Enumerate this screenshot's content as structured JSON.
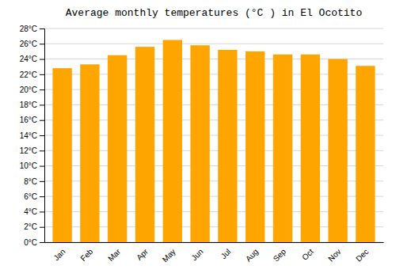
{
  "chart_data": {
    "type": "bar",
    "title": "Average monthly temperatures (°C ) in El Ocotito",
    "categories": [
      "Jan",
      "Feb",
      "Mar",
      "Apr",
      "May",
      "Jun",
      "Jul",
      "Aug",
      "Sep",
      "Oct",
      "Nov",
      "Dec"
    ],
    "values": [
      22.8,
      23.3,
      24.5,
      25.6,
      26.5,
      25.8,
      25.2,
      25.0,
      24.6,
      24.6,
      24.0,
      23.1
    ],
    "color": "#FFA500",
    "ylim": [
      0,
      28
    ],
    "yticks": [
      {
        "value": 0,
        "label": "0°C"
      },
      {
        "value": 2,
        "label": "2°C"
      },
      {
        "value": 4,
        "label": "4°C"
      },
      {
        "value": 6,
        "label": "6°C"
      },
      {
        "value": 8,
        "label": "8°C"
      },
      {
        "value": 10,
        "label": "10°C"
      },
      {
        "value": 12,
        "label": "12°C"
      },
      {
        "value": 14,
        "label": "14°C"
      },
      {
        "value": 16,
        "label": "16°C"
      },
      {
        "value": 18,
        "label": "18°C"
      },
      {
        "value": 20,
        "label": "20°C"
      },
      {
        "value": 22,
        "label": "22°C"
      },
      {
        "value": 24,
        "label": "24°C"
      },
      {
        "value": 26,
        "label": "26°C"
      },
      {
        "value": 28,
        "label": "28°C"
      }
    ],
    "grid": true
  }
}
